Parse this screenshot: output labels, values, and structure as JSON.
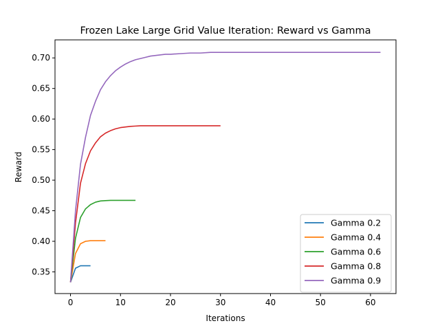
{
  "chart_data": {
    "type": "line",
    "title": "Frozen Lake Large Grid Value Iteration: Reward vs Gamma",
    "xlabel": "Iterations",
    "ylabel": "Reward",
    "xlim": [
      -3.1,
      65.1
    ],
    "ylim": [
      0.3145,
      0.7295
    ],
    "xticks": [
      0,
      10,
      20,
      30,
      40,
      50,
      60
    ],
    "yticks": [
      0.35,
      0.4,
      0.45,
      0.5,
      0.55,
      0.6,
      0.65,
      0.7
    ],
    "ytick_labels": [
      "0.35",
      "0.40",
      "0.45",
      "0.50",
      "0.55",
      "0.60",
      "0.65",
      "0.70"
    ],
    "grid": false,
    "legend_position": "lower-right",
    "series": [
      {
        "name": "Gamma 0.2",
        "color": "#1f77b4",
        "x": [
          0,
          1,
          2,
          3,
          4
        ],
        "y": [
          0.333,
          0.356,
          0.36,
          0.36,
          0.36
        ]
      },
      {
        "name": "Gamma 0.4",
        "color": "#ff7f0e",
        "x": [
          0,
          1,
          2,
          3,
          4,
          5,
          6,
          7
        ],
        "y": [
          0.333,
          0.38,
          0.396,
          0.4,
          0.401,
          0.401,
          0.401,
          0.401
        ]
      },
      {
        "name": "Gamma 0.6",
        "color": "#2ca02c",
        "x": [
          0,
          1,
          2,
          3,
          4,
          5,
          6,
          7,
          8,
          9,
          10,
          11,
          12,
          13
        ],
        "y": [
          0.333,
          0.405,
          0.439,
          0.453,
          0.46,
          0.464,
          0.466,
          0.4665,
          0.467,
          0.467,
          0.467,
          0.467,
          0.467,
          0.467
        ]
      },
      {
        "name": "Gamma 0.8",
        "color": "#d62728",
        "x": [
          0,
          1,
          2,
          3,
          4,
          5,
          6,
          7,
          8,
          9,
          10,
          11,
          12,
          13,
          14,
          15,
          16,
          17,
          18,
          19,
          20,
          22,
          24,
          26,
          28,
          30
        ],
        "y": [
          0.333,
          0.43,
          0.495,
          0.527,
          0.548,
          0.561,
          0.571,
          0.577,
          0.581,
          0.584,
          0.586,
          0.587,
          0.588,
          0.5885,
          0.589,
          0.589,
          0.589,
          0.589,
          0.589,
          0.589,
          0.589,
          0.589,
          0.589,
          0.589,
          0.589,
          0.589
        ]
      },
      {
        "name": "Gamma 0.9",
        "color": "#9467bd",
        "x": [
          0,
          1,
          2,
          3,
          4,
          5,
          6,
          7,
          8,
          9,
          10,
          11,
          12,
          13,
          14,
          15,
          16,
          17,
          18,
          19,
          20,
          22,
          24,
          26,
          28,
          30,
          35,
          40,
          45,
          50,
          55,
          62
        ],
        "y": [
          0.333,
          0.45,
          0.526,
          0.57,
          0.606,
          0.629,
          0.648,
          0.661,
          0.671,
          0.679,
          0.685,
          0.69,
          0.694,
          0.697,
          0.699,
          0.701,
          0.703,
          0.704,
          0.705,
          0.706,
          0.706,
          0.707,
          0.708,
          0.708,
          0.709,
          0.709,
          0.709,
          0.709,
          0.709,
          0.709,
          0.709,
          0.709
        ]
      }
    ]
  }
}
